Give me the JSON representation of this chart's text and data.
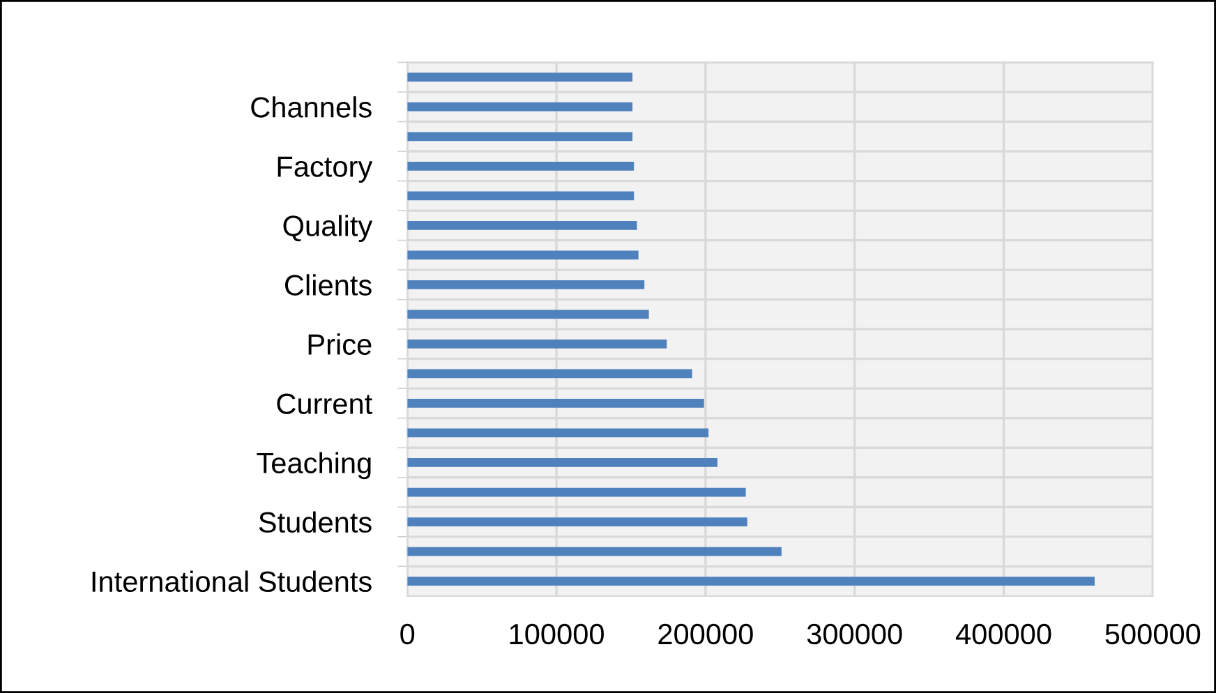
{
  "chart_data": {
    "type": "bar",
    "orientation": "horizontal",
    "categories": [
      null,
      "Channels",
      null,
      "Factory",
      null,
      "Quality",
      null,
      "Clients",
      null,
      "Price",
      null,
      "Current",
      null,
      "Teaching",
      null,
      "Students",
      null,
      "International Students"
    ],
    "values": [
      151000,
      151000,
      151000,
      152000,
      152000,
      154000,
      155000,
      159000,
      162000,
      174000,
      191000,
      199000,
      202000,
      208000,
      227000,
      228000,
      251000,
      461000
    ],
    "color": "#4f81bd",
    "xlim": [
      0,
      500000
    ],
    "xticks": [
      0,
      100000,
      200000,
      300000,
      400000,
      500000
    ],
    "grid": true
  }
}
